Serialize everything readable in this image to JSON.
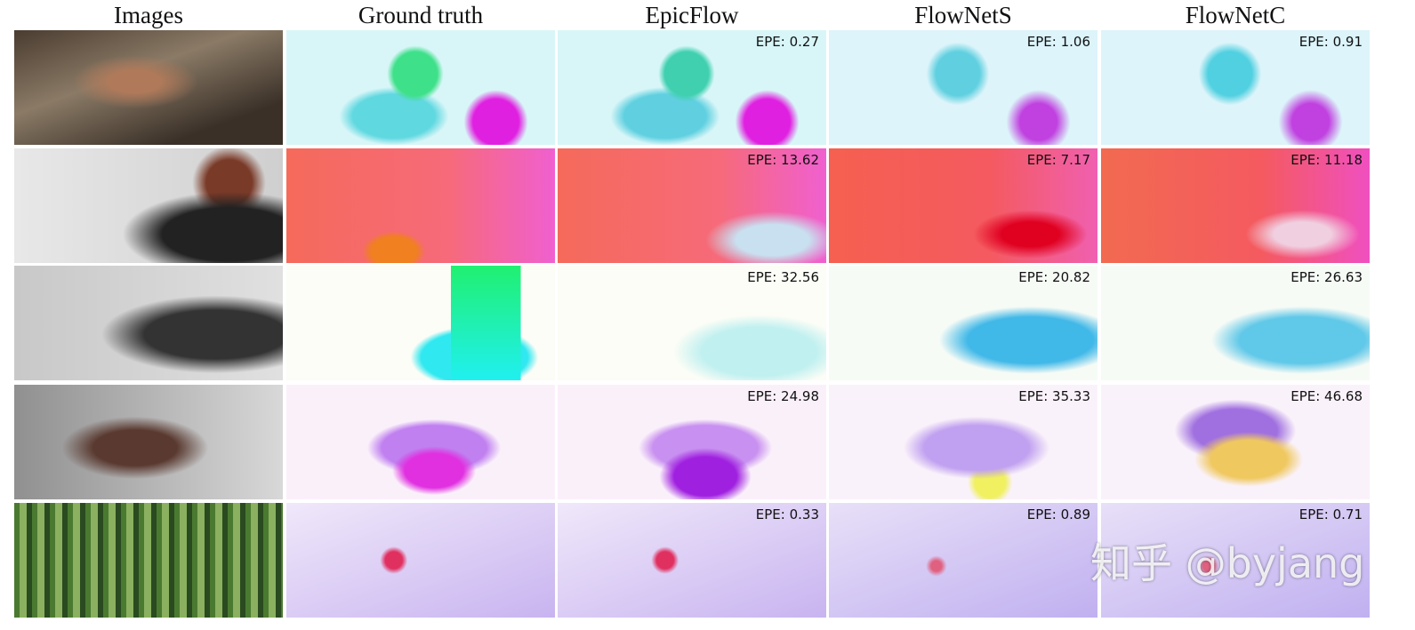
{
  "header": {
    "columns": [
      "Images",
      "Ground truth",
      "EpicFlow",
      "FlowNetS",
      "FlowNetC"
    ]
  },
  "rows": [
    {
      "epe": [
        "EPE: 0.27",
        "EPE: 1.06",
        "EPE: 0.91"
      ]
    },
    {
      "epe": [
        "EPE: 13.62",
        "EPE: 7.17",
        "EPE: 11.18"
      ]
    },
    {
      "epe": [
        "EPE: 32.56",
        "EPE: 20.82",
        "EPE: 26.63"
      ]
    },
    {
      "epe": [
        "EPE: 24.98",
        "EPE: 35.33",
        "EPE: 46.68"
      ]
    },
    {
      "epe": [
        "EPE: 0.33",
        "EPE: 0.89",
        "EPE: 0.71"
      ]
    }
  ],
  "watermark": "知乎 @byjang"
}
